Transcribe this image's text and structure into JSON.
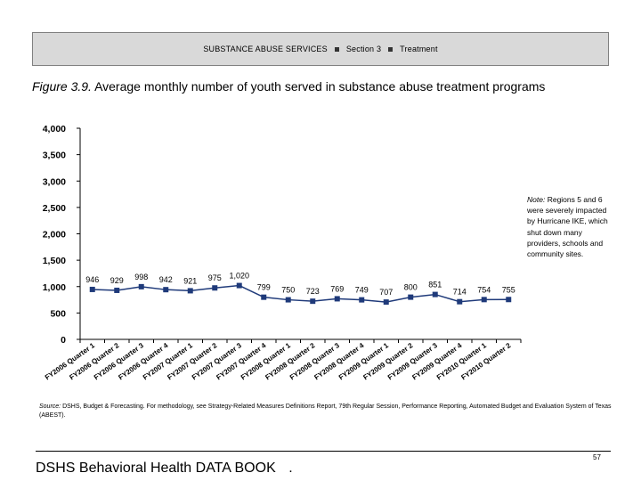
{
  "header": {
    "section_name": "SUBSTANCE ABUSE SERVICES",
    "section_number": "Section 3",
    "subsection": "Treatment"
  },
  "figure": {
    "label": "Figure 3.9.",
    "title": "Average monthly number of youth served in substance abuse treatment programs"
  },
  "note": {
    "label": "Note:",
    "text": "Regions 5 and 6 were severely impacted by Hurricane IKE, which shut down many providers, schools and community sites."
  },
  "source": {
    "label": "Source:",
    "text": "DSHS, Budget & Forecasting. For methodology, see Strategy-Related Measures Definitions Report, 79th Regular Session, Performance Reporting, Automated Budget and Evaluation System of Texas (ABEST)."
  },
  "footer": {
    "book_title": "DSHS Behavioral Health DATA BOOK",
    "dot": ".",
    "page_number": "57"
  },
  "chart_data": {
    "type": "line",
    "title": "Average monthly number of youth served in substance abuse treatment programs",
    "xlabel": "",
    "ylabel": "",
    "ylim": [
      0,
      4000
    ],
    "yticks": [
      0,
      500,
      1000,
      1500,
      2000,
      2500,
      3000,
      3500,
      4000
    ],
    "ytick_labels": [
      "0",
      "500",
      "1,000",
      "1,500",
      "2,000",
      "2,500",
      "3,000",
      "3,500",
      "4,000"
    ],
    "grid": false,
    "series_color": "#1f3a7a",
    "categories": [
      "FY2006 Quarter 1",
      "FY2006 Quarter 2",
      "FY2006 Quarter 3",
      "FY2006 Quarter 4",
      "FY2007 Quarter 1",
      "FY2007 Quarter 2",
      "FY2007 Quarter 3",
      "FY2007 Quarter 4",
      "FY2008 Quarter 1",
      "FY2008 Quarter 2",
      "FY2008 Quarter 3",
      "FY2008 Quarter 4",
      "FY2009 Quarter 1",
      "FY2009 Quarter 2",
      "FY2009 Quarter 3",
      "FY2009 Quarter 4",
      "FY2010 Quarter 1",
      "FY2010 Quarter 2"
    ],
    "values": [
      946,
      929,
      998,
      942,
      921,
      975,
      1020,
      799,
      750,
      723,
      769,
      749,
      707,
      800,
      851,
      714,
      754,
      755
    ],
    "data_labels": [
      "946",
      "929",
      "998",
      "942",
      "921",
      "975",
      "1,020",
      "799",
      "750",
      "723",
      "769",
      "749",
      "707",
      "800",
      "851",
      "714",
      "754",
      "755"
    ]
  }
}
